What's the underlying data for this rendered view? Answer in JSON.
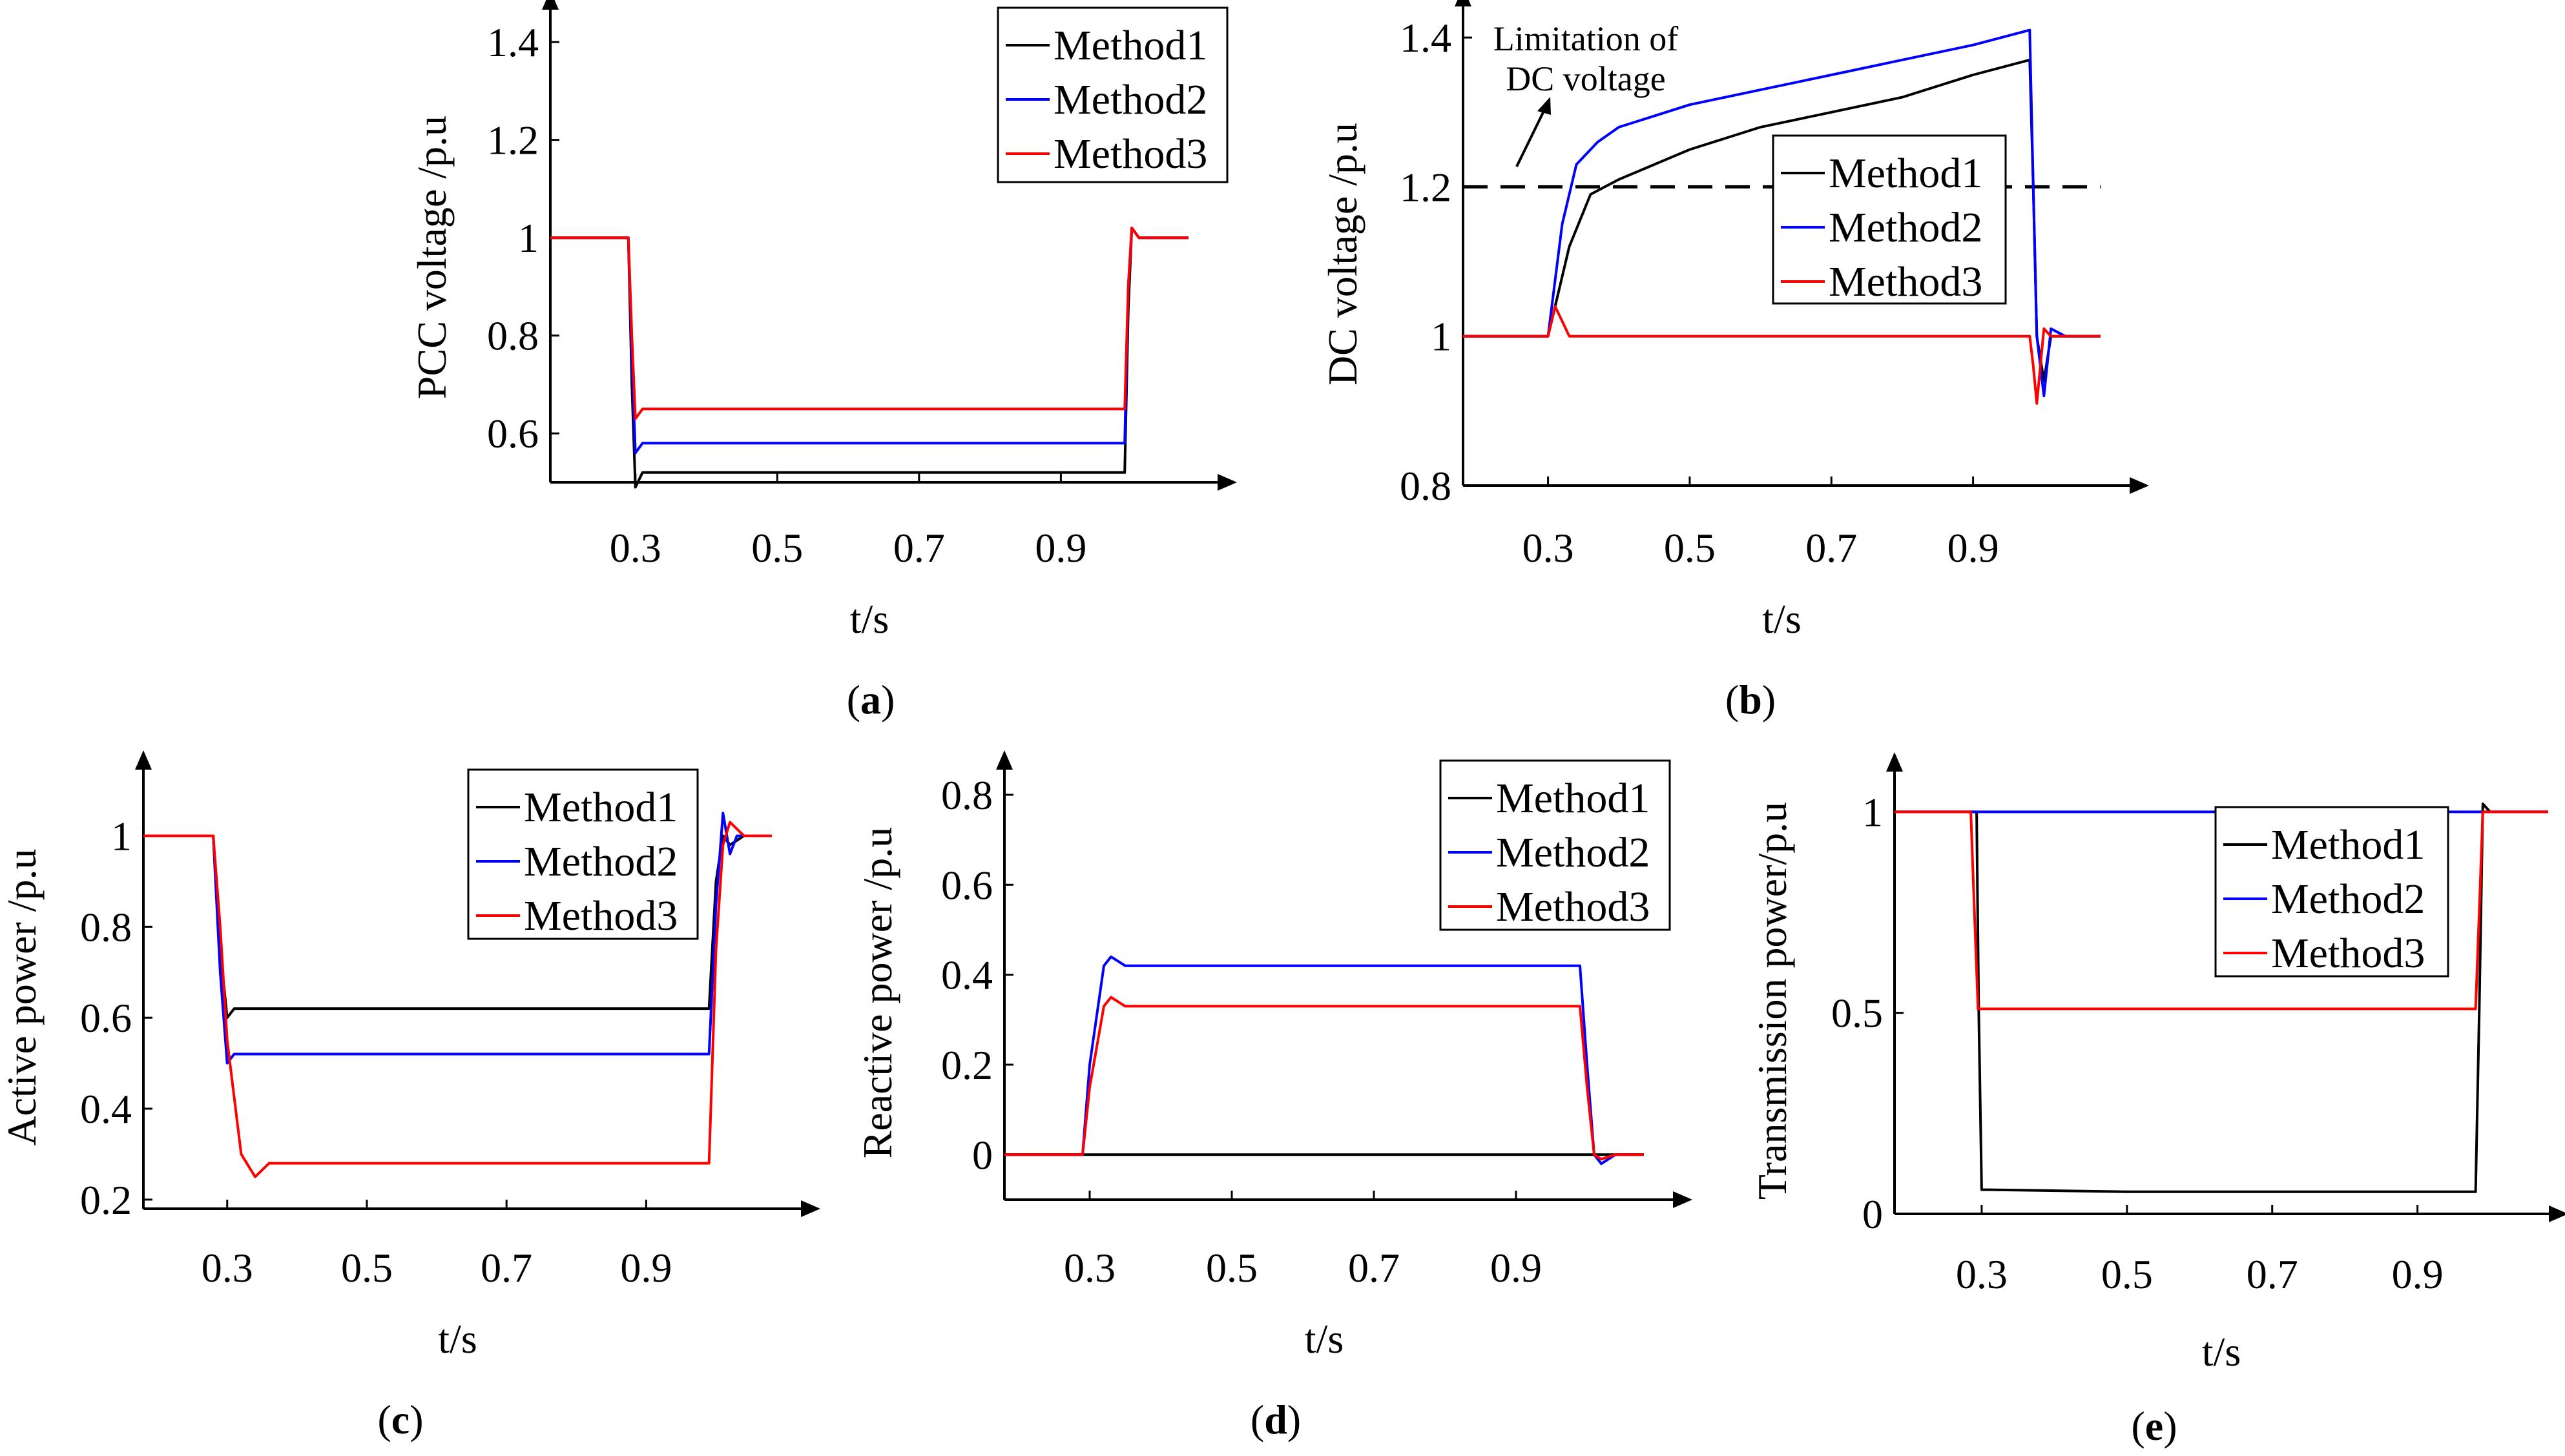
{
  "figure": {
    "series_colors": {
      "Method1": "#000000",
      "Method2": "#0000ff",
      "Method3": "#ff0000"
    }
  },
  "chart_data": [
    {
      "type": "line",
      "panel_label": "a",
      "xlabel": "t/s",
      "ylabel": "PCC voltage /p.u",
      "xlim": [
        0.18,
        1.08
      ],
      "ylim": [
        0.5,
        1.42
      ],
      "x_ticks": [
        0.3,
        0.5,
        0.7,
        0.9
      ],
      "x_tick_labels": [
        "0.3",
        "0.5",
        "0.7",
        "0.9"
      ],
      "y_ticks": [
        0.6,
        0.8,
        1.0,
        1.2,
        1.4
      ],
      "y_tick_labels": [
        "0.6",
        "0.8",
        "1",
        "1.2",
        "1.4"
      ],
      "legend_position": "top-right",
      "grid": false,
      "series": [
        {
          "name": "Method1",
          "x": [
            0.18,
            0.28,
            0.29,
            0.295,
            0.3,
            0.31,
            0.99,
            0.995,
            1.0,
            1.01,
            1.02,
            1.08
          ],
          "y": [
            1.0,
            1.0,
            1.0,
            0.7,
            0.49,
            0.52,
            0.52,
            0.85,
            1.02,
            1.0,
            1.0,
            1.0
          ]
        },
        {
          "name": "Method2",
          "x": [
            0.18,
            0.28,
            0.29,
            0.295,
            0.3,
            0.31,
            0.99,
            0.995,
            1.0,
            1.01,
            1.02,
            1.08
          ],
          "y": [
            1.0,
            1.0,
            1.0,
            0.75,
            0.56,
            0.58,
            0.58,
            0.9,
            1.02,
            1.0,
            1.0,
            1.0
          ]
        },
        {
          "name": "Method3",
          "x": [
            0.18,
            0.28,
            0.29,
            0.295,
            0.3,
            0.31,
            0.99,
            0.995,
            1.0,
            1.01,
            1.02,
            1.08
          ],
          "y": [
            1.0,
            1.0,
            1.0,
            0.8,
            0.63,
            0.65,
            0.65,
            0.9,
            1.02,
            1.0,
            1.0,
            1.0
          ]
        }
      ]
    },
    {
      "type": "line",
      "panel_label": "b",
      "xlabel": "t/s",
      "ylabel": "DC voltage /p.u",
      "xlim": [
        0.18,
        1.08
      ],
      "ylim": [
        0.8,
        1.42
      ],
      "x_ticks": [
        0.3,
        0.5,
        0.7,
        0.9
      ],
      "x_tick_labels": [
        "0.3",
        "0.5",
        "0.7",
        "0.9"
      ],
      "y_ticks": [
        0.8,
        1.0,
        1.2,
        1.4
      ],
      "y_tick_labels": [
        "0.8",
        "1",
        "1.2",
        "1.4"
      ],
      "legend_position": "center-right",
      "grid": false,
      "reference_line": {
        "y": 1.2,
        "style": "dashed"
      },
      "annotation": {
        "lines": [
          "Limitation of",
          "DC voltage"
        ]
      },
      "series": [
        {
          "name": "Method1",
          "x": [
            0.18,
            0.29,
            0.3,
            0.33,
            0.36,
            0.4,
            0.5,
            0.6,
            0.7,
            0.8,
            0.9,
            0.98,
            0.985,
            0.99,
            1.0,
            1.01,
            1.03,
            1.08
          ],
          "y": [
            1.0,
            1.0,
            1.0,
            1.12,
            1.19,
            1.21,
            1.25,
            1.28,
            1.3,
            1.32,
            1.35,
            1.37,
            1.2,
            1.0,
            0.94,
            1.0,
            1.0,
            1.0
          ]
        },
        {
          "name": "Method2",
          "x": [
            0.18,
            0.29,
            0.3,
            0.32,
            0.34,
            0.37,
            0.4,
            0.5,
            0.6,
            0.7,
            0.8,
            0.9,
            0.98,
            0.985,
            0.99,
            1.0,
            1.01,
            1.03,
            1.08
          ],
          "y": [
            1.0,
            1.0,
            1.0,
            1.15,
            1.23,
            1.26,
            1.28,
            1.31,
            1.33,
            1.35,
            1.37,
            1.39,
            1.41,
            1.2,
            1.0,
            0.92,
            1.01,
            1.0,
            1.0
          ]
        },
        {
          "name": "Method3",
          "x": [
            0.18,
            0.29,
            0.3,
            0.31,
            0.33,
            0.35,
            0.5,
            0.7,
            0.9,
            0.98,
            0.985,
            0.99,
            1.0,
            1.01,
            1.03,
            1.08
          ],
          "y": [
            1.0,
            1.0,
            1.0,
            1.04,
            1.0,
            1.0,
            1.0,
            1.0,
            1.0,
            1.0,
            0.96,
            0.91,
            1.01,
            1.0,
            1.0,
            1.0
          ]
        }
      ]
    },
    {
      "type": "line",
      "panel_label": "c",
      "xlabel": "t/s",
      "ylabel": "Active power /p.u",
      "xlim": [
        0.18,
        1.08
      ],
      "ylim": [
        0.18,
        1.11
      ],
      "x_ticks": [
        0.3,
        0.5,
        0.7,
        0.9
      ],
      "x_tick_labels": [
        "0.3",
        "0.5",
        "0.7",
        "0.9"
      ],
      "y_ticks": [
        0.2,
        0.4,
        0.6,
        0.8,
        1.0
      ],
      "y_tick_labels": [
        "0.2",
        "0.4",
        "0.6",
        "0.8",
        "1"
      ],
      "legend_position": "top-right",
      "grid": false,
      "series": [
        {
          "name": "Method1",
          "x": [
            0.18,
            0.28,
            0.29,
            0.3,
            0.31,
            0.99,
            1.0,
            1.01,
            1.02,
            1.04,
            1.08
          ],
          "y": [
            1.0,
            1.0,
            0.75,
            0.6,
            0.62,
            0.62,
            0.9,
            1.0,
            0.98,
            1.0,
            1.0
          ]
        },
        {
          "name": "Method2",
          "x": [
            0.18,
            0.28,
            0.29,
            0.3,
            0.31,
            0.99,
            1.0,
            1.01,
            1.02,
            1.03,
            1.05,
            1.08
          ],
          "y": [
            1.0,
            1.0,
            0.7,
            0.5,
            0.52,
            0.52,
            0.85,
            1.05,
            0.96,
            1.0,
            1.0,
            1.0
          ]
        },
        {
          "name": "Method3",
          "x": [
            0.18,
            0.28,
            0.29,
            0.3,
            0.32,
            0.34,
            0.36,
            0.99,
            1.0,
            1.01,
            1.02,
            1.04,
            1.08
          ],
          "y": [
            1.0,
            1.0,
            0.8,
            0.55,
            0.3,
            0.25,
            0.28,
            0.28,
            0.75,
            0.98,
            1.03,
            1.0,
            1.0
          ]
        }
      ]
    },
    {
      "type": "line",
      "panel_label": "d",
      "xlabel": "t/s",
      "ylabel": "Reactive power /p.u",
      "xlim": [
        0.18,
        1.08
      ],
      "ylim": [
        -0.1,
        0.82
      ],
      "x_ticks": [
        0.3,
        0.5,
        0.7,
        0.9
      ],
      "x_tick_labels": [
        "0.3",
        "0.5",
        "0.7",
        "0.9"
      ],
      "y_ticks": [
        0.0,
        0.2,
        0.4,
        0.6,
        0.8
      ],
      "y_tick_labels": [
        "0",
        "0.2",
        "0.4",
        "0.6",
        "0.8"
      ],
      "legend_position": "top-right",
      "grid": false,
      "series": [
        {
          "name": "Method1",
          "x": [
            0.18,
            0.5,
            0.7,
            0.9,
            1.08
          ],
          "y": [
            0.0,
            0.0,
            0.0,
            0.0,
            0.0
          ]
        },
        {
          "name": "Method2",
          "x": [
            0.18,
            0.29,
            0.3,
            0.32,
            0.33,
            0.35,
            0.99,
            1.0,
            1.01,
            1.02,
            1.04,
            1.08
          ],
          "y": [
            0.0,
            0.0,
            0.2,
            0.42,
            0.44,
            0.42,
            0.42,
            0.2,
            0.0,
            -0.02,
            0.0,
            0.0
          ]
        },
        {
          "name": "Method3",
          "x": [
            0.18,
            0.29,
            0.3,
            0.32,
            0.33,
            0.35,
            0.99,
            1.0,
            1.01,
            1.02,
            1.04,
            1.08
          ],
          "y": [
            0.0,
            0.0,
            0.15,
            0.33,
            0.35,
            0.33,
            0.33,
            0.15,
            0.0,
            -0.01,
            0.0,
            0.0
          ]
        }
      ]
    },
    {
      "type": "line",
      "panel_label": "e",
      "xlabel": "t/s",
      "ylabel": "Transmission power/p.u",
      "xlim": [
        0.18,
        1.08
      ],
      "ylim": [
        0.0,
        1.06
      ],
      "x_ticks": [
        0.3,
        0.5,
        0.7,
        0.9
      ],
      "x_tick_labels": [
        "0.3",
        "0.5",
        "0.7",
        "0.9"
      ],
      "y_ticks": [
        0.0,
        0.5,
        1.0
      ],
      "y_tick_labels": [
        "0",
        "0.5",
        "1"
      ],
      "legend_position": "top-right",
      "grid": false,
      "series": [
        {
          "name": "Method1",
          "x": [
            0.18,
            0.293,
            0.296,
            0.3,
            0.31,
            0.5,
            0.7,
            0.98,
            0.985,
            0.99,
            1.0,
            1.08
          ],
          "y": [
            1.0,
            1.0,
            0.5,
            0.06,
            0.06,
            0.055,
            0.055,
            0.055,
            0.5,
            1.02,
            1.0,
            1.0
          ]
        },
        {
          "name": "Method2",
          "x": [
            0.18,
            0.5,
            0.7,
            0.9,
            1.08
          ],
          "y": [
            1.0,
            1.0,
            1.0,
            1.0,
            1.0
          ]
        },
        {
          "name": "Method3",
          "x": [
            0.18,
            0.285,
            0.29,
            0.295,
            0.3,
            0.98,
            0.985,
            0.99,
            1.08
          ],
          "y": [
            1.0,
            1.0,
            0.75,
            0.51,
            0.51,
            0.51,
            0.75,
            1.0,
            1.0
          ]
        }
      ]
    }
  ]
}
